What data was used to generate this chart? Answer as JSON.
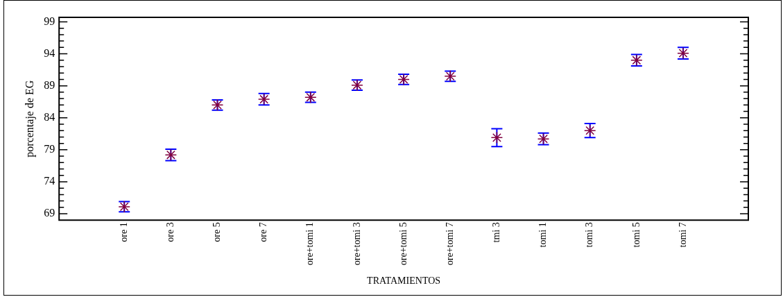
{
  "chart_data": {
    "type": "scatter",
    "xlabel": "TRATAMIENTOS",
    "ylabel": "porcentaje de EG",
    "categories": [
      "ore 1",
      "ore 3",
      "ore 5",
      "ore 7",
      "ore+tomi 1",
      "ore+tomi 3",
      "ore+tomi 5",
      "ore+tomi 7",
      "tmi 3",
      "tomi 1",
      "tomi 3",
      "tomi 5",
      "tomi 7"
    ],
    "series": [
      {
        "color": "#800040",
        "values": [
          70.1,
          78.2,
          86.0,
          86.9,
          87.2,
          89.1,
          90.0,
          90.5,
          80.9,
          80.7,
          82.0,
          93.0,
          94.1
        ],
        "errors": [
          0.8,
          0.9,
          0.8,
          0.9,
          0.8,
          0.8,
          0.8,
          0.8,
          1.4,
          0.9,
          1.1,
          0.9,
          0.9
        ]
      }
    ],
    "ylim": [
      68,
      99.7
    ],
    "yticks": [
      69,
      {
        "value": 70,
        "label": null
      },
      {
        "value": 71,
        "label": null
      },
      {
        "value": 72,
        "label": null
      },
      {
        "value": 73,
        "label": null
      },
      74,
      {
        "value": 75,
        "label": null
      },
      {
        "value": 76,
        "label": null
      },
      {
        "value": 77,
        "label": null
      },
      {
        "value": 78,
        "label": null
      },
      79,
      {
        "value": 80,
        "label": null
      },
      {
        "value": 81,
        "label": null
      },
      {
        "value": 82,
        "label": null
      },
      {
        "value": 83,
        "label": null
      },
      84,
      {
        "value": 85,
        "label": null
      },
      {
        "value": 86,
        "label": null
      },
      {
        "value": 87,
        "label": null
      },
      {
        "value": 88,
        "label": null
      },
      89,
      {
        "value": 90,
        "label": null
      },
      {
        "value": 91,
        "label": null
      },
      {
        "value": 92,
        "label": null
      },
      {
        "value": 93,
        "label": null
      },
      94,
      {
        "value": 95,
        "label": null
      },
      {
        "value": 96,
        "label": null
      },
      {
        "value": 97,
        "label": null
      },
      {
        "value": 98,
        "label": null
      },
      99
    ],
    "grid": false,
    "legend": false,
    "marker": "cross"
  }
}
